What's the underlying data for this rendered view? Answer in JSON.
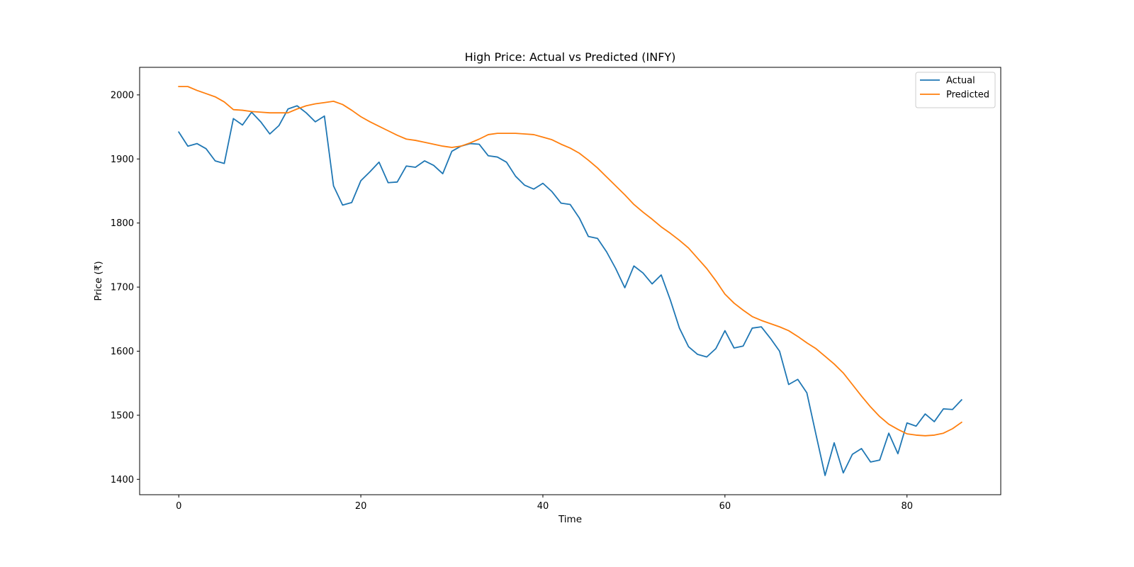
{
  "chart_data": {
    "type": "line",
    "title": "High Price: Actual vs Predicted (INFY)",
    "xlabel": "Time",
    "ylabel": "Price (₹)",
    "xlim": [
      -4.3,
      90.3
    ],
    "ylim": [
      1376,
      2043
    ],
    "xticks": [
      0,
      20,
      40,
      60,
      80
    ],
    "yticks": [
      1400,
      1500,
      1600,
      1700,
      1800,
      1900,
      2000
    ],
    "grid": false,
    "legend_position": "top-right",
    "series": [
      {
        "name": "Actual",
        "color": "#1f77b4",
        "values": [
          1942,
          1920,
          1924,
          1916,
          1897,
          1893,
          1963,
          1953,
          1973,
          1958,
          1939,
          1952,
          1978,
          1983,
          1972,
          1958,
          1967,
          1858,
          1828,
          1832,
          1866,
          1880,
          1895,
          1863,
          1864,
          1889,
          1887,
          1897,
          1890,
          1877,
          1912,
          1920,
          1924,
          1923,
          1905,
          1903,
          1895,
          1873,
          1859,
          1853,
          1862,
          1849,
          1831,
          1829,
          1808,
          1779,
          1776,
          1755,
          1729,
          1699,
          1733,
          1722,
          1705,
          1719,
          1680,
          1636,
          1607,
          1595,
          1591,
          1604,
          1632,
          1605,
          1608,
          1636,
          1638,
          1620,
          1600,
          1548,
          1556,
          1535,
          1470,
          1406,
          1457,
          1410,
          1439,
          1448,
          1427,
          1430,
          1472,
          1440,
          1488,
          1483,
          1502,
          1490,
          1510,
          1509,
          1524
        ]
      },
      {
        "name": "Predicted",
        "color": "#ff7f0e",
        "values": [
          2013,
          2013,
          2007,
          2002,
          1997,
          1989,
          1977,
          1976,
          1974,
          1973,
          1972,
          1972,
          1972,
          1978,
          1983,
          1986,
          1988,
          1990,
          1985,
          1976,
          1966,
          1958,
          1951,
          1944,
          1937,
          1931,
          1929,
          1926,
          1923,
          1920,
          1918,
          1920,
          1925,
          1931,
          1938,
          1940,
          1940,
          1940,
          1939,
          1938,
          1934,
          1930,
          1923,
          1917,
          1909,
          1898,
          1886,
          1872,
          1858,
          1844,
          1829,
          1817,
          1806,
          1794,
          1784,
          1773,
          1761,
          1745,
          1729,
          1710,
          1689,
          1675,
          1664,
          1654,
          1648,
          1643,
          1638,
          1632,
          1623,
          1613,
          1604,
          1592,
          1580,
          1566,
          1548,
          1530,
          1513,
          1498,
          1486,
          1478,
          1471,
          1469,
          1468,
          1469,
          1472,
          1479,
          1489
        ]
      }
    ]
  }
}
